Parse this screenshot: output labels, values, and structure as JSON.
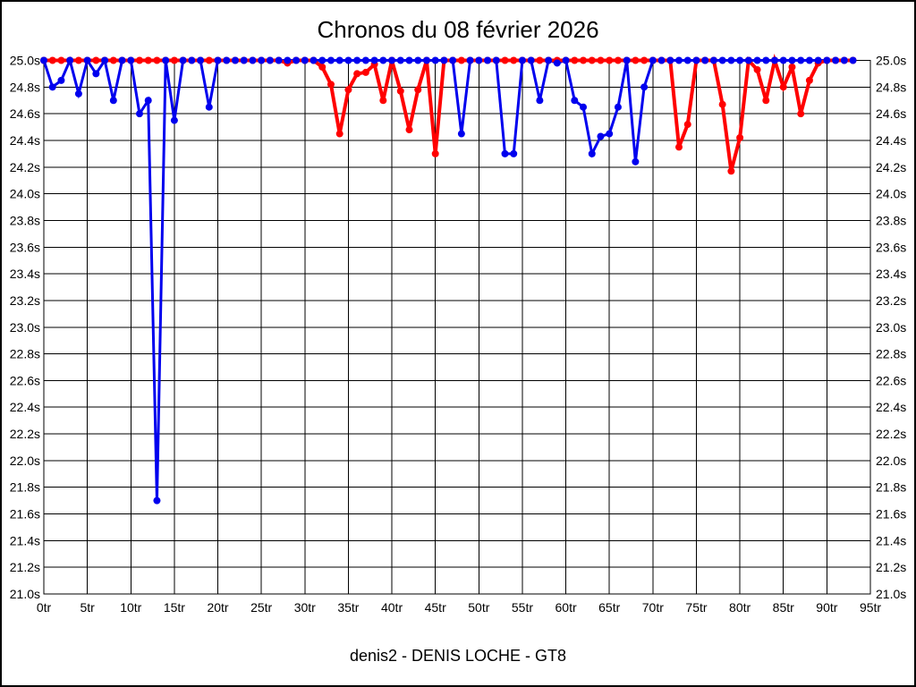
{
  "colors": {
    "background": "#ffffff",
    "text": "#000000",
    "grid": "#000000",
    "red_series": "#ff0000",
    "blue_series": "#0000ee"
  },
  "chart_data": {
    "type": "line",
    "title": "Chronos du 08 février 2026",
    "subtitle": "denis2 - DENIS LOCHE - GT8",
    "xlabel": "",
    "ylabel": "",
    "x_unit": "tr",
    "y_unit": "s",
    "xlim": [
      0,
      95
    ],
    "ylim": [
      21.0,
      25.0
    ],
    "grid": true,
    "legend": "none",
    "x_tick_step": 5,
    "y_tick_step": 0.2,
    "x_ticks": [
      "0tr",
      "5tr",
      "10tr",
      "15tr",
      "20tr",
      "25tr",
      "30tr",
      "35tr",
      "40tr",
      "45tr",
      "50tr",
      "55tr",
      "60tr",
      "65tr",
      "70tr",
      "75tr",
      "80tr",
      "85tr",
      "90tr",
      "95tr"
    ],
    "y_ticks": [
      "25.0s",
      "24.8s",
      "24.6s",
      "24.4s",
      "24.2s",
      "24.0s",
      "23.8s",
      "23.6s",
      "23.4s",
      "23.2s",
      "23.0s",
      "22.8s",
      "22.6s",
      "22.4s",
      "22.2s",
      "22.0s",
      "21.8s",
      "21.6s",
      "21.4s",
      "21.2s",
      "21.0s"
    ],
    "x_start": 0,
    "x_step": 1,
    "series": [
      {
        "name": "red",
        "color": "#ff0000",
        "marker": "circle",
        "values": [
          25,
          25,
          25,
          25,
          25,
          25,
          25,
          25,
          25,
          25,
          25,
          25,
          25,
          25,
          25,
          25,
          25,
          25,
          25,
          25,
          25,
          25,
          25,
          25,
          25,
          25,
          25,
          25,
          24.98,
          25,
          25,
          25,
          24.95,
          24.82,
          24.45,
          24.78,
          24.9,
          24.91,
          24.97,
          24.7,
          25,
          24.77,
          24.48,
          24.78,
          25,
          24.3,
          25,
          25,
          25,
          25,
          25,
          25,
          25,
          25,
          25,
          25,
          25,
          25,
          25,
          25,
          25,
          25,
          25,
          25,
          25,
          25,
          25,
          25,
          25,
          25,
          25,
          25,
          25,
          24.35,
          24.52,
          25,
          25,
          25,
          24.67,
          24.17,
          24.42,
          25,
          24.93,
          24.7,
          25,
          24.8,
          24.95,
          24.6,
          24.85,
          24.98,
          25,
          25,
          25,
          25
        ]
      },
      {
        "name": "blue",
        "color": "#0000ee",
        "marker": "circle",
        "values": [
          25,
          24.8,
          24.85,
          25,
          24.75,
          25,
          24.9,
          25,
          24.7,
          25,
          25,
          24.6,
          24.7,
          21.7,
          25,
          24.55,
          25,
          25,
          25,
          24.65,
          25,
          25,
          25,
          25,
          25,
          25,
          25,
          25,
          25,
          25,
          25,
          25,
          25,
          25,
          25,
          25,
          25,
          25,
          25,
          25,
          25,
          25,
          25,
          25,
          25,
          25,
          25,
          25,
          24.45,
          25,
          25,
          25,
          25,
          24.3,
          24.3,
          25,
          25,
          24.7,
          25,
          24.98,
          25,
          24.7,
          24.65,
          24.3,
          24.43,
          24.45,
          24.65,
          25,
          24.24,
          24.8,
          25,
          25,
          25,
          25,
          25,
          25,
          25,
          25,
          25,
          25,
          25,
          25,
          25,
          25,
          25,
          25,
          25,
          25,
          25,
          25,
          25,
          25,
          25,
          25
        ]
      }
    ]
  }
}
